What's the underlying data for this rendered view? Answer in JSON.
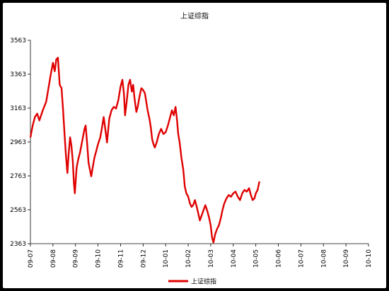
{
  "chart_data": {
    "type": "line",
    "title": "上证综指",
    "xlabel": "",
    "ylabel": "",
    "ylim": [
      2363,
      3563
    ],
    "y_ticks": [
      2363,
      2563,
      2763,
      2963,
      3163,
      3363,
      3563
    ],
    "x_ticks": [
      "09-07",
      "09-08",
      "09-09",
      "09-10",
      "09-11",
      "09-12",
      "10-01",
      "10-02",
      "10-03",
      "10-04",
      "10-05",
      "10-06",
      "10-07",
      "10-08",
      "10-09",
      "10-10"
    ],
    "grid": false,
    "legend_position": "bottom",
    "series": [
      {
        "name": "上证综指",
        "color": "#e00000",
        "points": [
          [
            0.0,
            2990
          ],
          [
            0.1,
            3060
          ],
          [
            0.2,
            3110
          ],
          [
            0.3,
            3130
          ],
          [
            0.4,
            3090
          ],
          [
            0.55,
            3150
          ],
          [
            0.7,
            3200
          ],
          [
            0.8,
            3280
          ],
          [
            0.9,
            3360
          ],
          [
            1.0,
            3430
          ],
          [
            1.08,
            3380
          ],
          [
            1.15,
            3450
          ],
          [
            1.22,
            3460
          ],
          [
            1.3,
            3300
          ],
          [
            1.38,
            3280
          ],
          [
            1.45,
            3150
          ],
          [
            1.52,
            3000
          ],
          [
            1.58,
            2880
          ],
          [
            1.64,
            2780
          ],
          [
            1.7,
            2900
          ],
          [
            1.76,
            2990
          ],
          [
            1.82,
            2940
          ],
          [
            1.88,
            2850
          ],
          [
            1.93,
            2720
          ],
          [
            1.97,
            2660
          ],
          [
            2.05,
            2810
          ],
          [
            2.12,
            2860
          ],
          [
            2.2,
            2900
          ],
          [
            2.3,
            2970
          ],
          [
            2.4,
            3040
          ],
          [
            2.45,
            3060
          ],
          [
            2.52,
            2950
          ],
          [
            2.58,
            2840
          ],
          [
            2.64,
            2800
          ],
          [
            2.7,
            2760
          ],
          [
            2.76,
            2810
          ],
          [
            2.84,
            2870
          ],
          [
            2.92,
            2910
          ],
          [
            3.0,
            2950
          ],
          [
            3.1,
            2990
          ],
          [
            3.18,
            3050
          ],
          [
            3.25,
            3110
          ],
          [
            3.3,
            3060
          ],
          [
            3.36,
            3000
          ],
          [
            3.4,
            2960
          ],
          [
            3.5,
            3100
          ],
          [
            3.6,
            3150
          ],
          [
            3.7,
            3170
          ],
          [
            3.8,
            3160
          ],
          [
            3.9,
            3210
          ],
          [
            4.0,
            3290
          ],
          [
            4.08,
            3330
          ],
          [
            4.15,
            3250
          ],
          [
            4.2,
            3120
          ],
          [
            4.27,
            3200
          ],
          [
            4.35,
            3300
          ],
          [
            4.42,
            3330
          ],
          [
            4.5,
            3260
          ],
          [
            4.56,
            3300
          ],
          [
            4.62,
            3220
          ],
          [
            4.7,
            3140
          ],
          [
            4.76,
            3170
          ],
          [
            4.84,
            3230
          ],
          [
            4.92,
            3280
          ],
          [
            5.0,
            3270
          ],
          [
            5.08,
            3250
          ],
          [
            5.14,
            3200
          ],
          [
            5.2,
            3150
          ],
          [
            5.28,
            3100
          ],
          [
            5.34,
            3050
          ],
          [
            5.4,
            2980
          ],
          [
            5.46,
            2950
          ],
          [
            5.52,
            2930
          ],
          [
            5.6,
            2960
          ],
          [
            5.7,
            3010
          ],
          [
            5.8,
            3040
          ],
          [
            5.9,
            3010
          ],
          [
            6.0,
            3020
          ],
          [
            6.1,
            3060
          ],
          [
            6.2,
            3110
          ],
          [
            6.28,
            3150
          ],
          [
            6.36,
            3120
          ],
          [
            6.44,
            3170
          ],
          [
            6.5,
            3100
          ],
          [
            6.56,
            3010
          ],
          [
            6.62,
            2960
          ],
          [
            6.7,
            2870
          ],
          [
            6.78,
            2800
          ],
          [
            6.85,
            2700
          ],
          [
            6.92,
            2660
          ],
          [
            7.0,
            2640
          ],
          [
            7.08,
            2600
          ],
          [
            7.15,
            2580
          ],
          [
            7.22,
            2590
          ],
          [
            7.3,
            2620
          ],
          [
            7.38,
            2580
          ],
          [
            7.45,
            2540
          ],
          [
            7.52,
            2500
          ],
          [
            7.6,
            2530
          ],
          [
            7.68,
            2560
          ],
          [
            7.76,
            2590
          ],
          [
            7.84,
            2560
          ],
          [
            7.92,
            2520
          ],
          [
            8.0,
            2470
          ],
          [
            8.06,
            2400
          ],
          [
            8.12,
            2370
          ],
          [
            8.2,
            2420
          ],
          [
            8.28,
            2450
          ],
          [
            8.36,
            2470
          ],
          [
            8.44,
            2510
          ],
          [
            8.52,
            2560
          ],
          [
            8.6,
            2600
          ],
          [
            8.7,
            2630
          ],
          [
            8.8,
            2650
          ],
          [
            8.9,
            2640
          ],
          [
            9.0,
            2660
          ],
          [
            9.1,
            2670
          ],
          [
            9.2,
            2640
          ],
          [
            9.3,
            2620
          ],
          [
            9.4,
            2660
          ],
          [
            9.5,
            2680
          ],
          [
            9.6,
            2670
          ],
          [
            9.7,
            2690
          ],
          [
            9.78,
            2650
          ],
          [
            9.86,
            2620
          ],
          [
            9.94,
            2630
          ],
          [
            10.0,
            2660
          ],
          [
            10.08,
            2680
          ],
          [
            10.16,
            2730
          ]
        ]
      }
    ]
  }
}
